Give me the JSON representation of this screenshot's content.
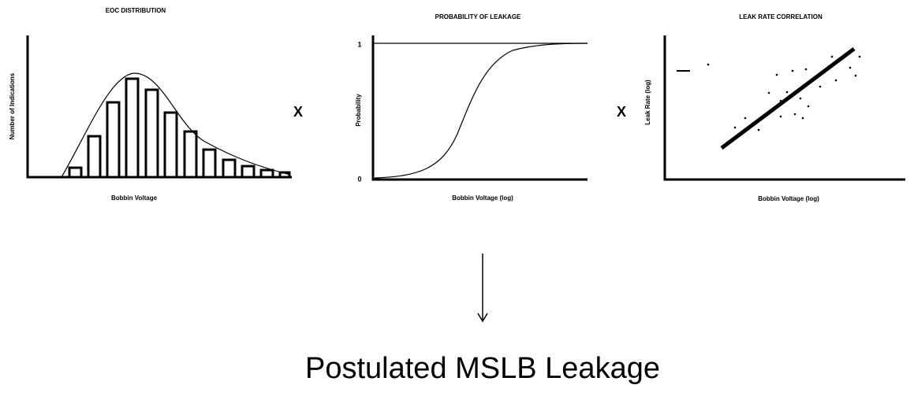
{
  "panels": [
    {
      "title": "EOC DISTRIBUTION",
      "y_label": "Number of Indications",
      "x_label": "Bobbin Voltage"
    },
    {
      "title": "PROBABILITY OF LEAKAGE",
      "y_label": "Probability",
      "x_label": "Bobbin Voltage (log)",
      "y_ticks": [
        "1",
        "0"
      ]
    },
    {
      "title": "LEAK RATE CORRELATION",
      "y_label": "Leak Rate (log)",
      "x_label": "Bobbin Voltage (log)"
    }
  ],
  "operators": [
    "X",
    "X"
  ],
  "result": "Postulated MSLB Leakage"
}
